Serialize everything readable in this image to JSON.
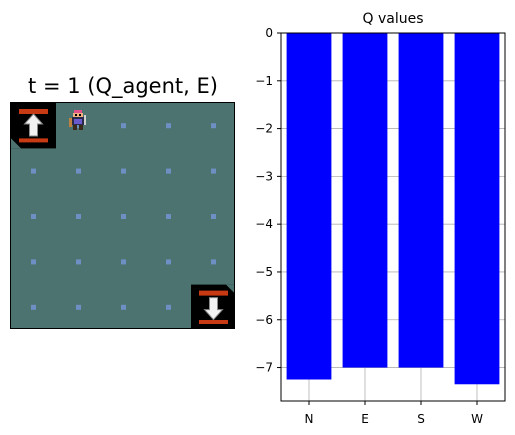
{
  "game": {
    "title": "t = 1 (Q_agent, E)",
    "grid": {
      "cols": 5,
      "rows": 5,
      "background": "#4d7370",
      "dot_color": "#6e8fc4"
    },
    "agent": {
      "icon": "knight-sprite-icon",
      "col": 1,
      "row": 0
    },
    "portals": [
      {
        "icon": "up-arrow-tile-icon",
        "col": 0,
        "row": 0
      },
      {
        "icon": "down-arrow-tile-icon",
        "col": 4,
        "row": 4
      }
    ]
  },
  "chart_data": {
    "type": "bar",
    "title": "Q values",
    "categories": [
      "N",
      "E",
      "S",
      "W"
    ],
    "values": [
      -7.25,
      -7.0,
      -7.0,
      -7.35
    ],
    "ylim": [
      -7.7,
      0
    ],
    "yticks": [
      0,
      -1,
      -2,
      -3,
      -4,
      -5,
      -6,
      -7
    ],
    "grid": true,
    "bar_color": "#0000ff",
    "xlabel": "",
    "ylabel": ""
  }
}
